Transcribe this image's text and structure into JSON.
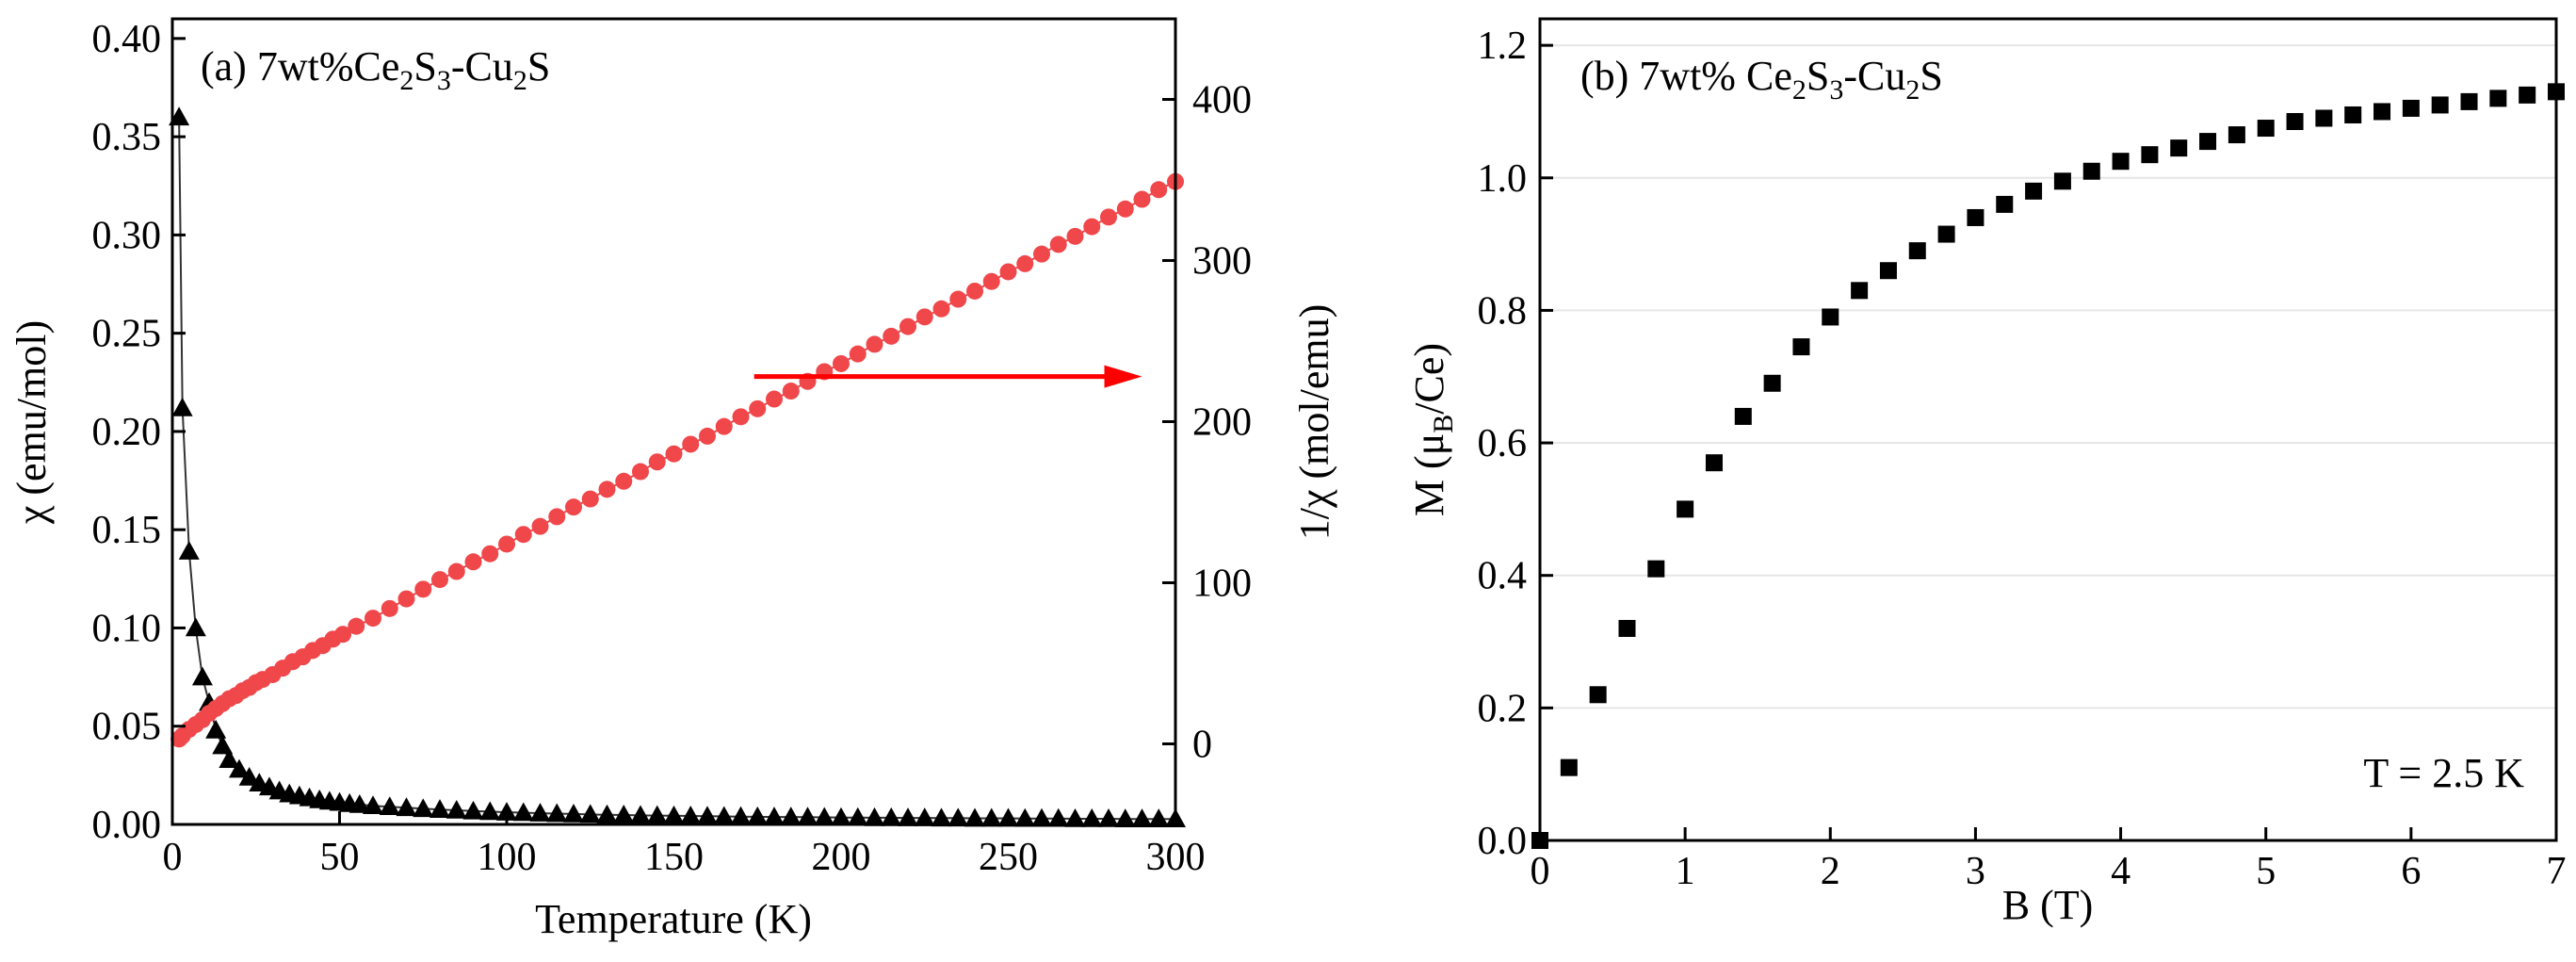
{
  "chart_data": [
    {
      "panel": "(a)",
      "type": "scatter",
      "label_prefix": "(a) 7wt%",
      "label_parts": [
        "Ce",
        "2",
        "S",
        "3",
        "-Cu",
        "2",
        "S"
      ],
      "xlabel": "Temperature (K)",
      "ylabel_left": "χ (emu/mol)",
      "ylabel_right": "1/χ (mol/emu)",
      "xlim": [
        0,
        300
      ],
      "ylim_left": [
        0,
        0.41
      ],
      "ylim_right": [
        -50,
        450
      ],
      "xticks": [
        0,
        50,
        100,
        150,
        200,
        250,
        300
      ],
      "yticks_left": [
        "0.00",
        "0.05",
        "0.10",
        "0.15",
        "0.20",
        "0.25",
        "0.30",
        "0.35",
        "0.40"
      ],
      "yticks_right": [
        0,
        100,
        200,
        300,
        400
      ],
      "series": [
        {
          "name": "chi",
          "axis": "left",
          "marker": "triangle",
          "color": "#000000",
          "x": [
            2,
            3,
            5,
            7,
            9,
            11,
            13,
            15,
            17,
            20,
            23,
            26,
            29,
            32,
            35,
            38,
            41,
            44,
            47,
            50,
            53,
            56,
            60,
            65,
            70,
            75,
            80,
            85,
            90,
            95,
            100,
            105,
            110,
            115,
            120,
            125,
            130,
            135,
            140,
            145,
            150,
            155,
            160,
            165,
            170,
            175,
            180,
            185,
            190,
            195,
            200,
            205,
            210,
            215,
            220,
            225,
            230,
            235,
            240,
            245,
            250,
            255,
            260,
            265,
            270,
            275,
            280,
            285,
            290,
            295,
            300
          ],
          "y": [
            0.36,
            0.212,
            0.139,
            0.1,
            0.075,
            0.062,
            0.048,
            0.04,
            0.033,
            0.028,
            0.024,
            0.021,
            0.019,
            0.017,
            0.0155,
            0.0145,
            0.0135,
            0.0125,
            0.0118,
            0.0112,
            0.0106,
            0.0101,
            0.0095,
            0.009,
            0.0085,
            0.008,
            0.0076,
            0.0072,
            0.0068,
            0.0065,
            0.0062,
            0.006,
            0.0057,
            0.0055,
            0.0053,
            0.0051,
            0.0049,
            0.0048,
            0.0046,
            0.0045,
            0.0044,
            0.0043,
            0.0042,
            0.0041,
            0.004,
            0.0039,
            0.0038,
            0.0038,
            0.0037,
            0.0036,
            0.0035,
            0.0035,
            0.0034,
            0.0034,
            0.0033,
            0.0033,
            0.0032,
            0.0032,
            0.0031,
            0.0031,
            0.0031,
            0.003,
            0.003,
            0.003,
            0.0029,
            0.0029,
            0.0029,
            0.0028,
            0.0028,
            0.0028,
            0.0028
          ]
        },
        {
          "name": "1/chi",
          "axis": "right",
          "marker": "circle",
          "color": "#f0474b",
          "x": [
            2,
            3,
            5,
            7,
            9,
            11,
            13,
            15,
            17,
            19,
            21,
            23,
            25,
            27,
            30,
            33,
            36,
            39,
            42,
            45,
            48,
            51,
            55,
            60,
            65,
            70,
            75,
            80,
            85,
            90,
            95,
            100,
            105,
            110,
            115,
            120,
            125,
            130,
            135,
            140,
            145,
            150,
            155,
            160,
            165,
            170,
            175,
            180,
            185,
            190,
            195,
            200,
            205,
            210,
            215,
            220,
            225,
            230,
            235,
            240,
            245,
            250,
            255,
            260,
            265,
            270,
            275,
            280,
            285,
            290,
            295,
            300
          ],
          "y": [
            3,
            5,
            9,
            12,
            15,
            19,
            22,
            25,
            28,
            30,
            33,
            35,
            38,
            40,
            43,
            47,
            51,
            54,
            58,
            61,
            65,
            68,
            73,
            78,
            84,
            90,
            96,
            102,
            107,
            113,
            118,
            124,
            130,
            135,
            141,
            147,
            152,
            158,
            163,
            169,
            175,
            180,
            186,
            191,
            197,
            203,
            208,
            214,
            219,
            225,
            231,
            236,
            242,
            248,
            253,
            259,
            265,
            270,
            276,
            281,
            287,
            293,
            298,
            304,
            310,
            315,
            321,
            327,
            332,
            338,
            344,
            349
          ]
        }
      ],
      "annotations": [
        {
          "type": "arrow",
          "direction": "right",
          "color": "#ff0000",
          "from": [
            174,
            228
          ],
          "to": [
            290,
            228
          ],
          "axis": "right"
        }
      ]
    },
    {
      "panel": "(b)",
      "type": "scatter",
      "label_prefix": "(b) 7wt% ",
      "label_parts": [
        "Ce",
        "2",
        "S",
        "3",
        "-Cu",
        "2",
        "S"
      ],
      "xlabel": "B (T)",
      "ylabel_prefix": "M (μ",
      "ylabel_sub": "B",
      "ylabel_suffix": "/Ce)",
      "note": "T = 2.5 K",
      "xlim": [
        0,
        7
      ],
      "ylim": [
        0,
        1.24
      ],
      "xticks": [
        0,
        1,
        2,
        3,
        4,
        5,
        6,
        7
      ],
      "yticks": [
        "0.0",
        "0.2",
        "0.4",
        "0.6",
        "0.8",
        "1.0",
        "1.2"
      ],
      "series": [
        {
          "name": "M",
          "marker": "square",
          "color": "#000000",
          "x": [
            0.0,
            0.2,
            0.4,
            0.6,
            0.8,
            1.0,
            1.2,
            1.4,
            1.6,
            1.8,
            2.0,
            2.2,
            2.4,
            2.6,
            2.8,
            3.0,
            3.2,
            3.4,
            3.6,
            3.8,
            4.0,
            4.2,
            4.4,
            4.6,
            4.8,
            5.0,
            5.2,
            5.4,
            5.6,
            5.8,
            6.0,
            6.2,
            6.4,
            6.6,
            6.8,
            7.0
          ],
          "y": [
            0.0,
            0.11,
            0.22,
            0.32,
            0.41,
            0.5,
            0.57,
            0.64,
            0.69,
            0.745,
            0.79,
            0.83,
            0.86,
            0.89,
            0.915,
            0.94,
            0.96,
            0.98,
            0.995,
            1.01,
            1.025,
            1.035,
            1.045,
            1.055,
            1.065,
            1.075,
            1.085,
            1.09,
            1.095,
            1.1,
            1.105,
            1.11,
            1.115,
            1.12,
            1.125,
            1.13
          ]
        }
      ]
    }
  ]
}
